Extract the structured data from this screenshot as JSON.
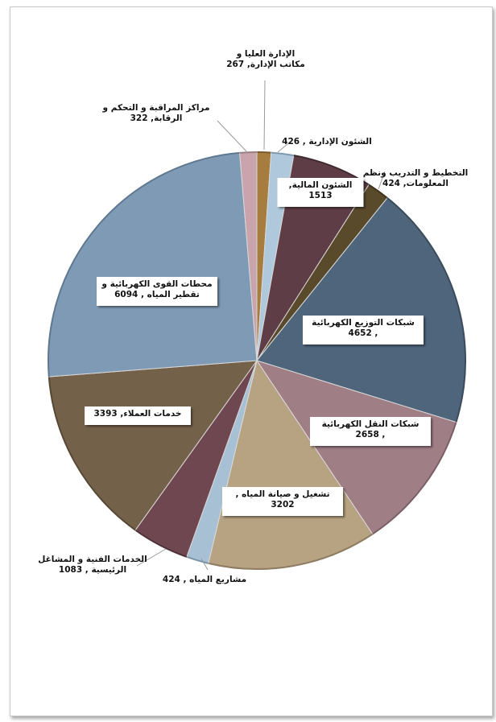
{
  "chart_data": {
    "type": "pie",
    "slices": [
      {
        "label_lines": [
          "الإدارة العليا و",
          "مكاتب الإدارة, 267"
        ],
        "value": 267,
        "color": "#a67c3f",
        "edge": "#7a5a2a"
      },
      {
        "label_lines": [
          "الشئون الإدارية , 426"
        ],
        "value": 426,
        "color": "#afc8dc",
        "edge": "#7f9ab0"
      },
      {
        "label_lines": [
          "الشئون المالية,",
          "1513"
        ],
        "value": 1513,
        "color": "#5e3d46",
        "edge": "#3e2a30"
      },
      {
        "label_lines": [
          "التخطيط و التدريب ونظم",
          "المعلومات, 424"
        ],
        "value": 424,
        "color": "#5a4a2c",
        "edge": "#3f331e"
      },
      {
        "label_lines": [
          "شبكات التوزيع الكهربائية",
          ", 4652"
        ],
        "value": 4652,
        "color": "#4f657b",
        "edge": "#3a4b5c"
      },
      {
        "label_lines": [
          "شبكات النقل الكهربائية",
          ", 2658"
        ],
        "value": 2658,
        "color": "#a07e86",
        "edge": "#7a5f66"
      },
      {
        "label_lines": [
          "تشغيل و صيانة المياه ,",
          "3202"
        ],
        "value": 3202,
        "color": "#b7a282",
        "edge": "#8d7c62"
      },
      {
        "label_lines": [
          "مشاريع المياه , 424"
        ],
        "value": 424,
        "color": "#a8c0d4",
        "edge": "#7c94a8"
      },
      {
        "label_lines": [
          "الخدمات الفنية و المشاغل",
          "الرئيسية , 1083"
        ],
        "value": 1083,
        "color": "#6f4750",
        "edge": "#4f3339"
      },
      {
        "label_lines": [
          "خدمات العملاء, 3393"
        ],
        "value": 3393,
        "color": "#74614a",
        "edge": "#574836"
      },
      {
        "label_lines": [
          "محطات القوى الكهربائية و",
          "تقطير المياه , 6094"
        ],
        "value": 6094,
        "color": "#7e9ab5",
        "edge": "#5f7890"
      },
      {
        "label_lines": [
          "مراكز المراقبة و التحكم و",
          "الرقابة, 322"
        ],
        "value": 322,
        "color": "#c9a4ad",
        "edge": "#9b7e85"
      }
    ]
  }
}
